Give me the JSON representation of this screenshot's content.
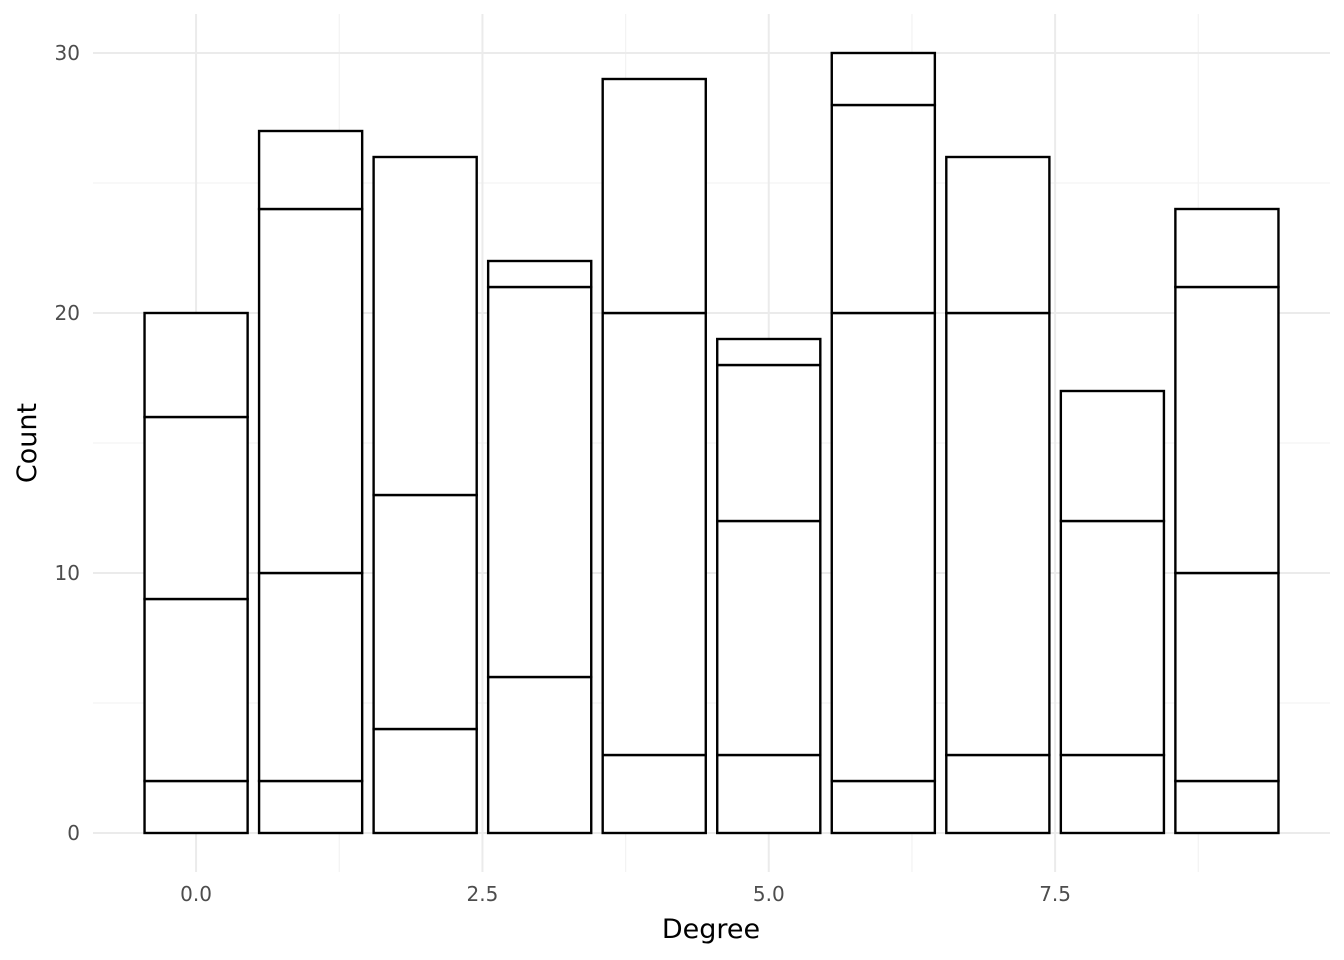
{
  "chart_data": {
    "type": "bar",
    "stacked": true,
    "title": "",
    "xlabel": "Degree",
    "ylabel": "Count",
    "x": [
      0,
      1,
      2,
      3,
      4,
      5,
      6,
      7,
      8,
      9
    ],
    "stacks": [
      [
        2,
        9,
        16,
        20
      ],
      [
        2,
        10,
        24,
        27
      ],
      [
        4,
        13,
        26
      ],
      [
        6,
        21,
        22
      ],
      [
        3,
        20,
        29
      ],
      [
        3,
        12,
        18,
        19
      ],
      [
        2,
        20,
        28,
        30
      ],
      [
        3,
        20,
        26
      ],
      [
        3,
        12,
        17
      ],
      [
        2,
        10,
        21,
        24
      ]
    ],
    "totals": [
      20,
      27,
      26,
      22,
      29,
      19,
      30,
      26,
      17,
      24
    ],
    "xlim": [
      -0.9,
      9.9
    ],
    "ylim": [
      -1.5,
      31.5
    ],
    "x_ticks": [
      0,
      2.5,
      5,
      7.5
    ],
    "x_tick_labels": [
      "0.0",
      "2.5",
      "5.0",
      "7.5"
    ],
    "y_ticks": [
      0,
      10,
      20,
      30
    ],
    "y_tick_labels": [
      "0",
      "10",
      "20",
      "30"
    ],
    "bar_fill": "#ffffff",
    "bar_outline": "#000000",
    "grid": true,
    "legend": "none"
  }
}
